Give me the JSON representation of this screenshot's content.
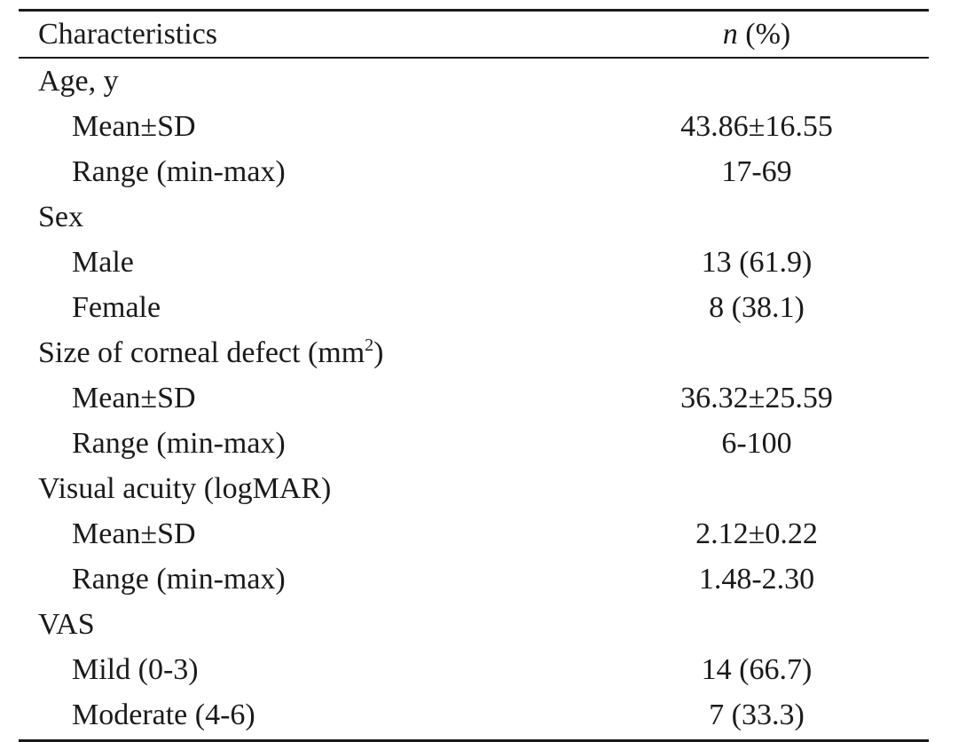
{
  "table": {
    "headers": {
      "characteristics": "Characteristics",
      "n": "n",
      "percent": "(%)"
    },
    "rows": [
      {
        "label": "Age, y",
        "value": ""
      },
      {
        "label": "Mean±SD",
        "value": "43.86±16.55"
      },
      {
        "label": "Range (min-max)",
        "value": "17-69"
      },
      {
        "label": "Sex",
        "value": ""
      },
      {
        "label": "Male",
        "value": "13 (61.9)"
      },
      {
        "label": "Female",
        "value": "8 (38.1)"
      },
      {
        "label": "Size of corneal defect (mm",
        "sup": "2",
        "label_end": ")",
        "value": ""
      },
      {
        "label": "Mean±SD",
        "value": "36.32±25.59"
      },
      {
        "label": "Range (min-max)",
        "value": "6-100"
      },
      {
        "label": "Visual acuity (logMAR)",
        "value": ""
      },
      {
        "label": "Mean±SD",
        "value": "2.12±0.22"
      },
      {
        "label": "Range (min-max)",
        "value": "1.48-2.30"
      },
      {
        "label": "VAS",
        "value": ""
      },
      {
        "label": "Mild (0-3)",
        "value": "14 (66.7)"
      },
      {
        "label": "Moderate (4-6)",
        "value": "7 (33.3)"
      }
    ]
  }
}
